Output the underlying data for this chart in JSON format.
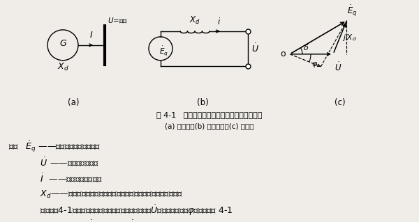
{
  "bg_color": "#f0ede8",
  "fig_width": 6.0,
  "fig_height": 3.19,
  "title_line1": "图 4-1   发电机与无限大容量系统母线并联运行",
  "title_line2": "(a) 接线图；(b) 等値电路；(c) 相量图",
  "line1": "式中   $\\dot{E}_q$ ——发电机的感应电动势；",
  "line2": "    $\\dot{U}$ ——发电机端电压；",
  "line3": "    $\\dot{I}$  ——发电机输出电流；",
  "line4": "    $X_d$——发电机的同步电抗（电枢反应电抗与定子端漏电抗之和）。",
  "line5": "    根据式（4-1），设发电机向系统输出电流滑后端电压$\\dot{U}$，功率因数角为$\\varphi$，可作出图 4-1",
  "line6": "（c）所示的相量图。图中发电机电动势$\\dot{E}_q$与机端母线电压$\\dot{U}$之间的夹角$\\delta$称为发电机的功率"
}
